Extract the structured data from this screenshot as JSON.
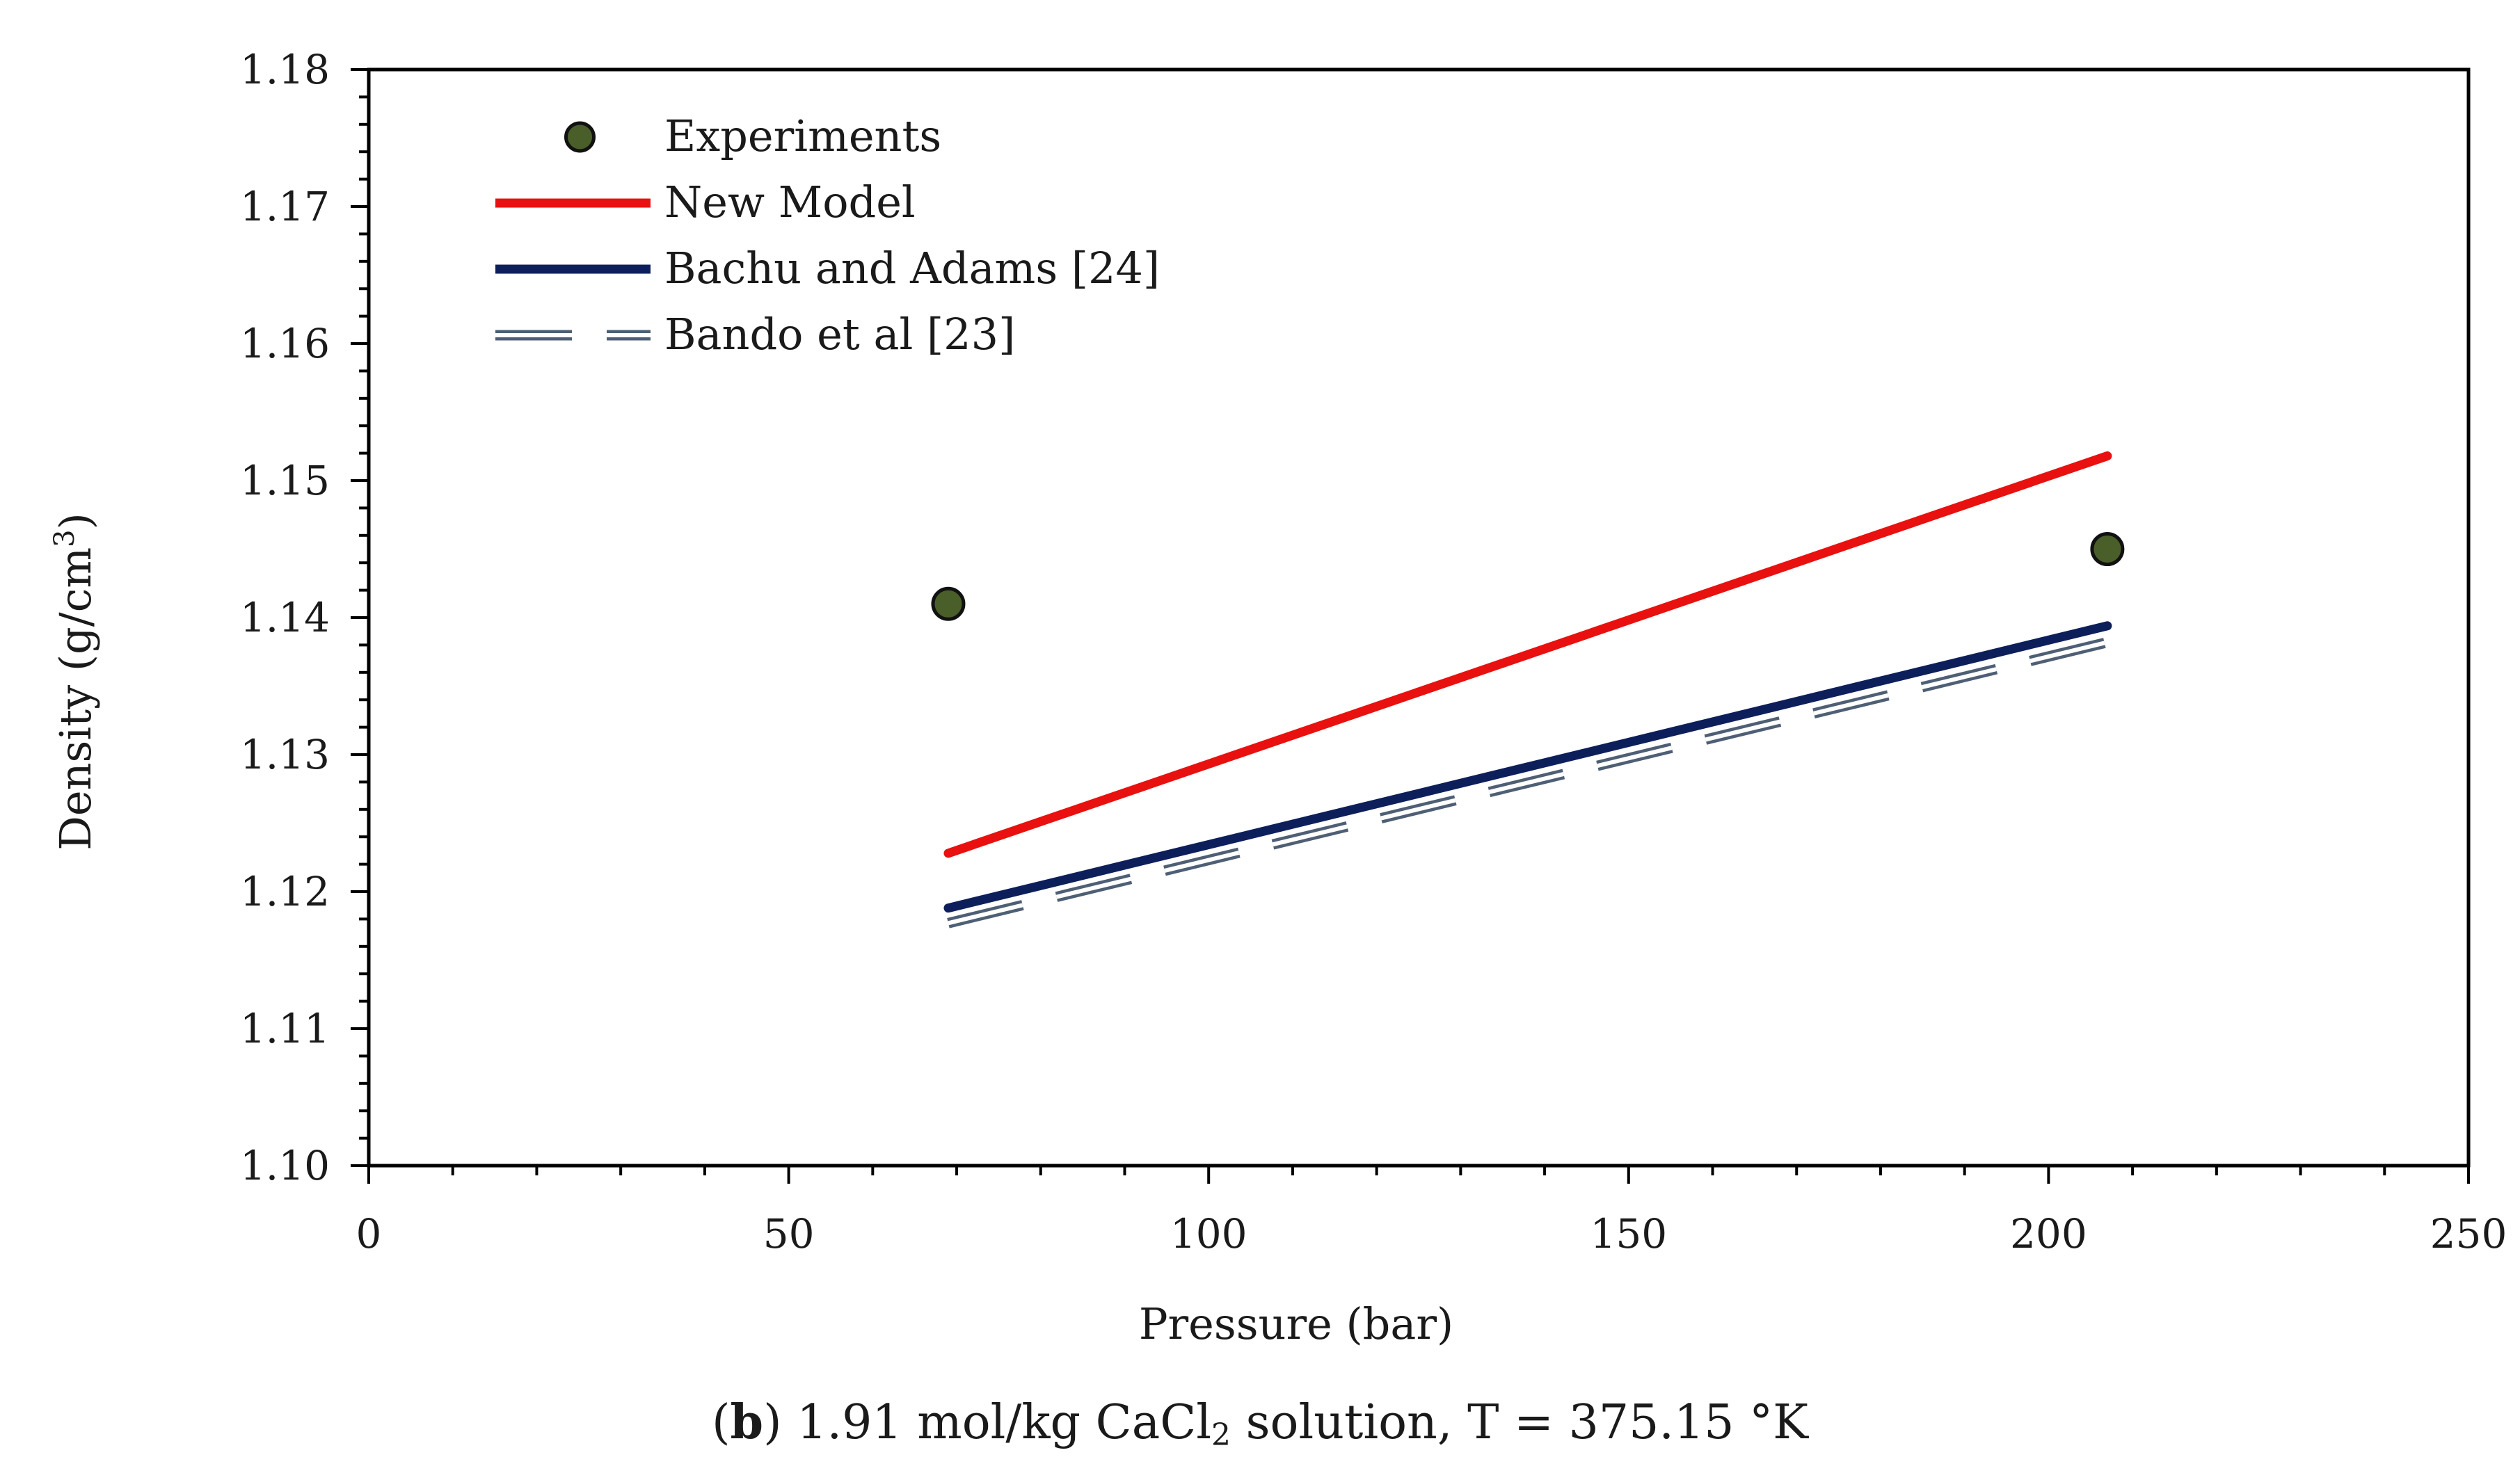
{
  "chart_data": {
    "type": "line",
    "xlabel": "Pressure (bar)",
    "ylabel": "Density (g/cm",
    "ylabel_sup": "3",
    "ylabel_end": ")",
    "xlim": [
      0,
      250
    ],
    "ylim": [
      1.1,
      1.18
    ],
    "x_major_step": 50,
    "x_minor_step": 10,
    "y_major_step": 0.01,
    "y_minor_step": 0.002,
    "x_tick_labels": [
      "0",
      "50",
      "100",
      "150",
      "200",
      "250"
    ],
    "y_tick_labels": [
      "1.10",
      "1.11",
      "1.12",
      "1.13",
      "1.14",
      "1.15",
      "1.16",
      "1.17",
      "1.18"
    ],
    "grid": false,
    "legend_position": "top-left",
    "series": [
      {
        "name": "Experiments",
        "kind": "scatter",
        "color": "#4a5e2a",
        "edge_color": "#111111",
        "x": [
          69,
          207
        ],
        "y": [
          1.141,
          1.145
        ]
      },
      {
        "name": "New Model",
        "kind": "line",
        "color": "#e8110f",
        "x": [
          69,
          207
        ],
        "y": [
          1.1228,
          1.1518
        ]
      },
      {
        "name": "Bachu and Adams [24]",
        "kind": "line",
        "color": "#0d1f5a",
        "x": [
          69,
          207
        ],
        "y": [
          1.1188,
          1.1394
        ]
      },
      {
        "name": "Bando et al [23]",
        "kind": "dashed-double",
        "color": "#4e5f75",
        "x": [
          69,
          207
        ],
        "y": [
          1.1177,
          1.1382
        ]
      }
    ]
  },
  "caption": {
    "panel": "b",
    "text_before": ") 1.91 mol/kg CaCl",
    "subscript": "2",
    "text_after": " solution, T = 375.15 °K",
    "open_paren": "("
  }
}
